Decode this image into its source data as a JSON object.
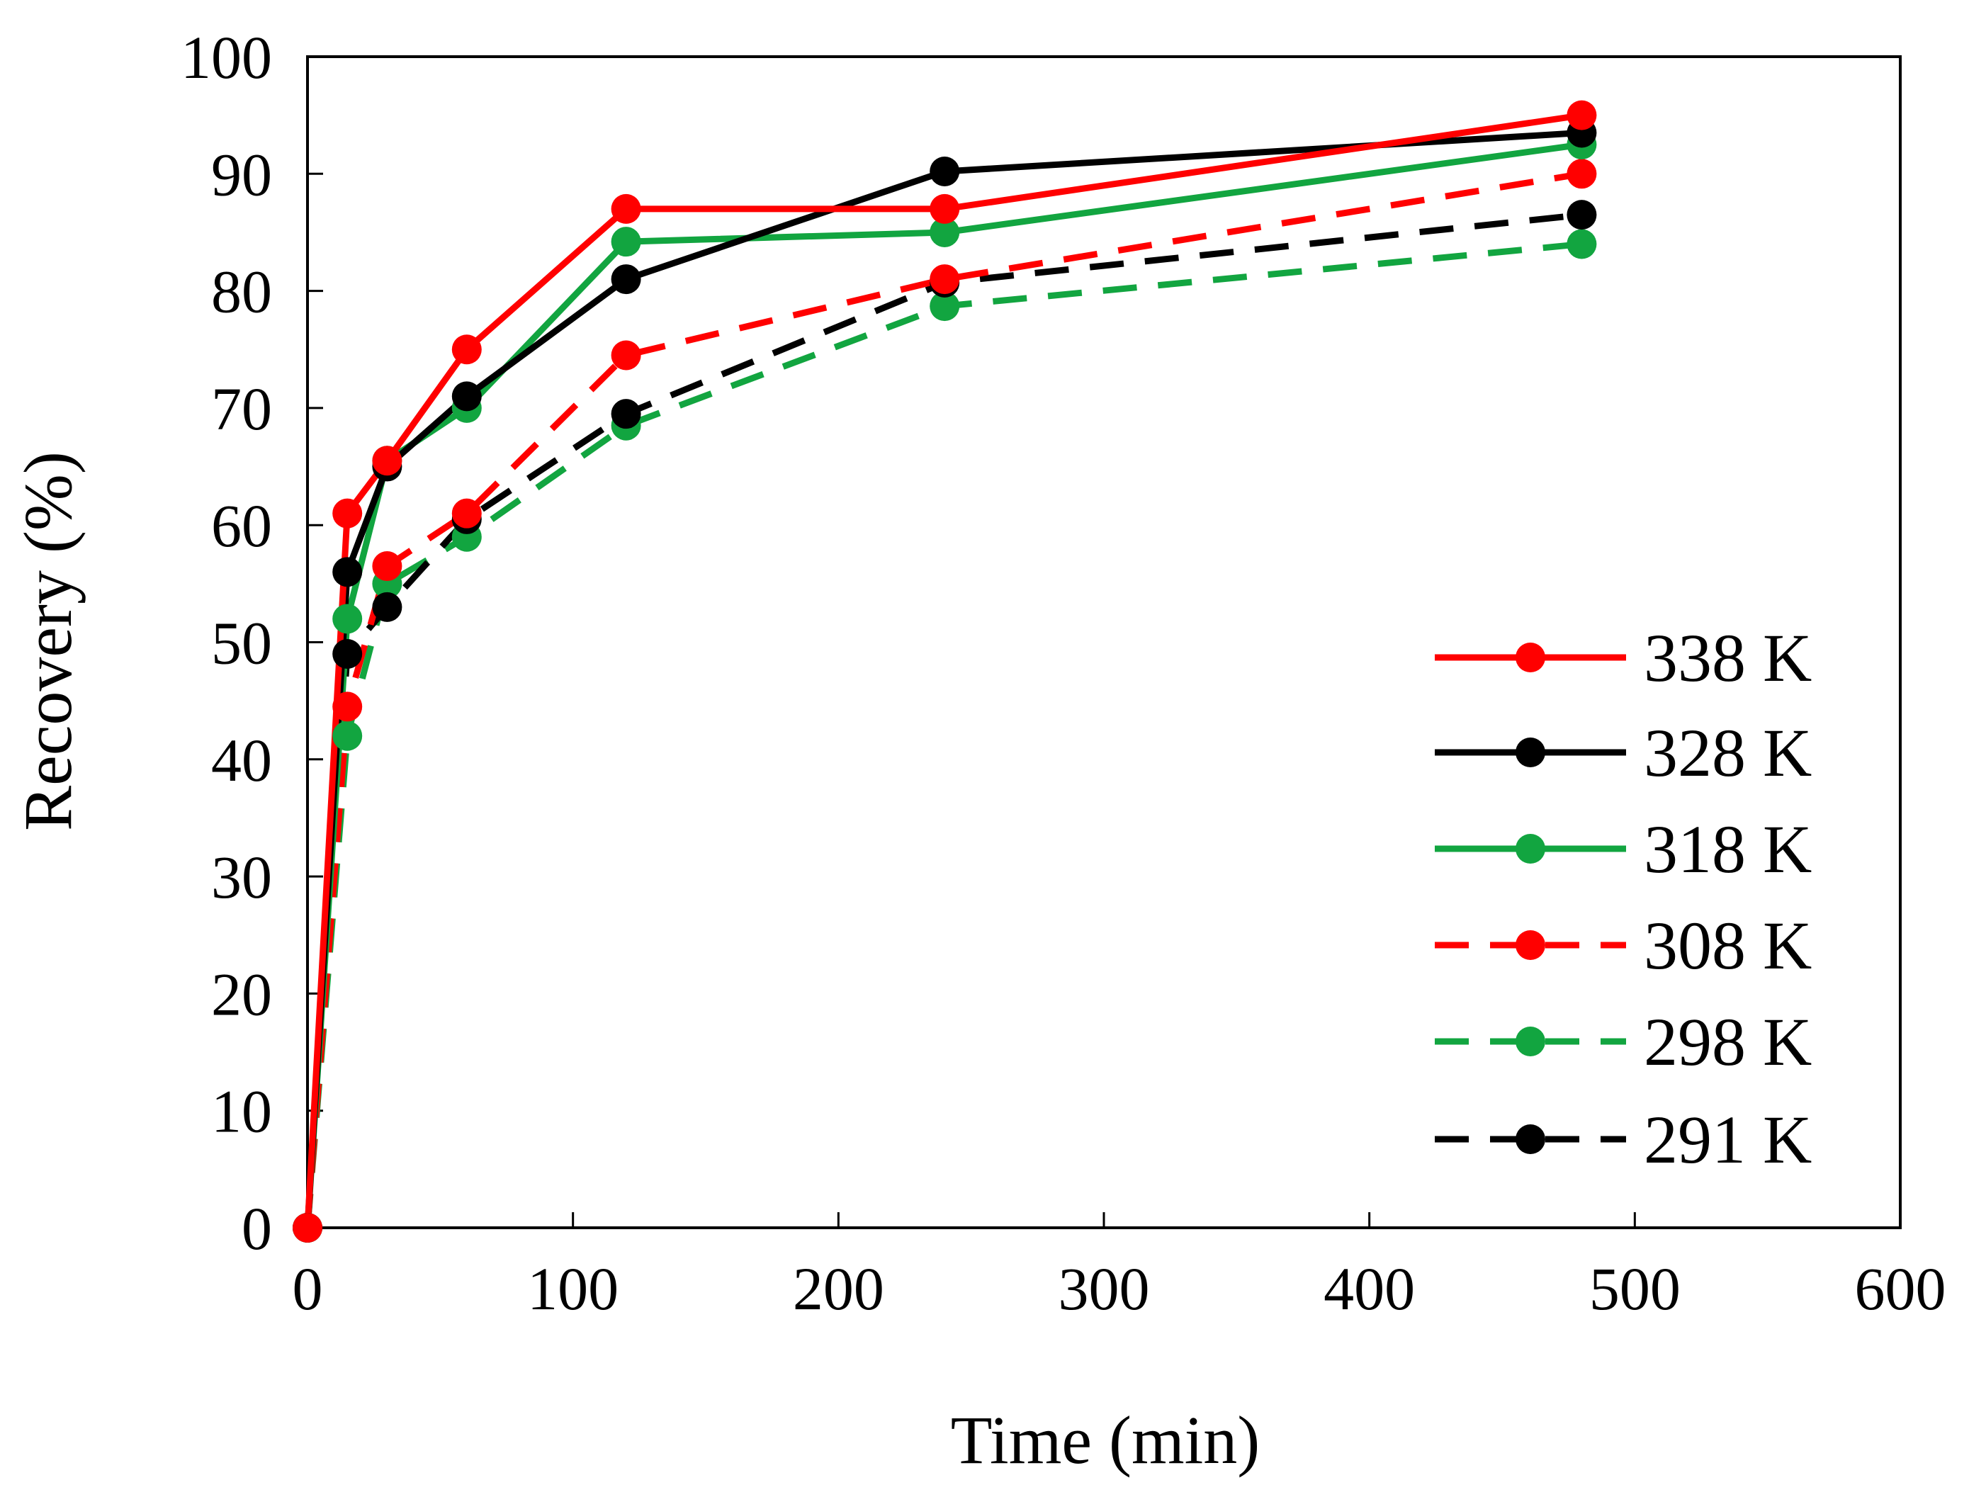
{
  "chart_data": {
    "type": "line",
    "title": "",
    "xlabel": "Time (min)",
    "ylabel": "Recovery (%)",
    "xlim": [
      0,
      600
    ],
    "ylim": [
      0,
      100
    ],
    "xticks": [
      0,
      100,
      200,
      300,
      400,
      500,
      600
    ],
    "yticks": [
      0,
      10,
      20,
      30,
      40,
      50,
      60,
      70,
      80,
      90,
      100
    ],
    "grid": false,
    "legend_position": "right",
    "x": [
      0,
      15,
      30,
      60,
      120,
      240,
      480
    ],
    "series": [
      {
        "name": "338 K",
        "color": "#ff0000",
        "dashed": false,
        "values": [
          0,
          61,
          65.5,
          75,
          87,
          87,
          95
        ]
      },
      {
        "name": "328 K",
        "color": "#000000",
        "dashed": false,
        "values": [
          0,
          56,
          65,
          71,
          81,
          90.2,
          93.5
        ]
      },
      {
        "name": "318 K",
        "color": "#12a540",
        "dashed": false,
        "values": [
          0,
          52,
          65.5,
          70,
          84.2,
          85,
          92.5
        ]
      },
      {
        "name": "308 K",
        "color": "#ff0000",
        "dashed": true,
        "values": [
          0,
          44.5,
          56.5,
          61,
          74.5,
          81,
          90
        ]
      },
      {
        "name": "298 K",
        "color": "#12a540",
        "dashed": true,
        "values": [
          0,
          42,
          55,
          59,
          68.5,
          78.7,
          84
        ]
      },
      {
        "name": "291 K",
        "color": "#000000",
        "dashed": true,
        "values": [
          0,
          49,
          53,
          60.5,
          69.5,
          80.7,
          86.5
        ]
      }
    ]
  }
}
